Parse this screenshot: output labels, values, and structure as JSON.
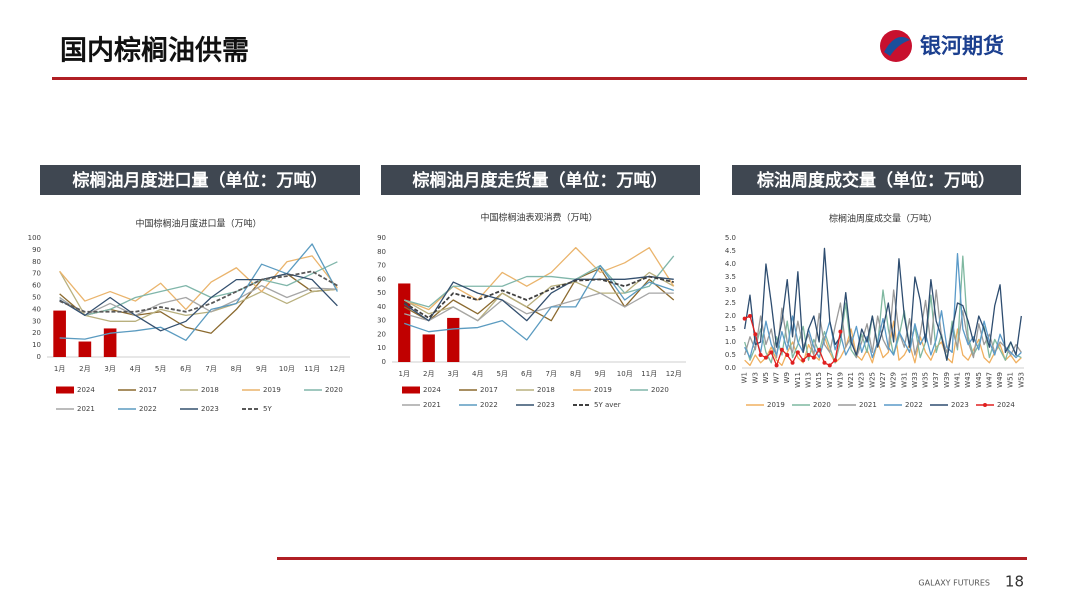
{
  "header": {
    "title": "国内棕榈油供需",
    "logo": "银河期货"
  },
  "footer": {
    "brand": "GALAXY FUTURES",
    "page": "18"
  },
  "chart_data": [
    {
      "type": "combo",
      "heading": "棕榈油月度进口量（单位：万吨）",
      "title": "中国棕榈油月度进口量（万吨）",
      "categories": [
        "1月",
        "2月",
        "3月",
        "4月",
        "5月",
        "6月",
        "7月",
        "8月",
        "9月",
        "10月",
        "11月",
        "12月"
      ],
      "ylim": [
        0,
        100
      ],
      "yticks": [
        0,
        10,
        20,
        30,
        40,
        50,
        60,
        70,
        80,
        90,
        100
      ],
      "grid": false,
      "series": [
        {
          "name": "2024",
          "type": "bar",
          "color": "#c00000",
          "values": [
            39,
            13,
            24,
            null,
            null,
            null,
            null,
            null,
            null,
            null,
            null,
            null
          ]
        },
        {
          "name": "2017",
          "color": "#8b6a2f",
          "values": [
            53,
            35,
            40,
            35,
            38,
            25,
            20,
            40,
            65,
            70,
            55,
            57
          ]
        },
        {
          "name": "2018",
          "color": "#b9b07e",
          "values": [
            72,
            35,
            30,
            30,
            40,
            35,
            38,
            45,
            55,
            45,
            55,
            57
          ]
        },
        {
          "name": "2019",
          "color": "#eab46c",
          "values": [
            72,
            47,
            55,
            47,
            62,
            40,
            63,
            75,
            55,
            80,
            85,
            58
          ]
        },
        {
          "name": "2020",
          "color": "#80b6aa",
          "values": [
            50,
            35,
            40,
            50,
            55,
            60,
            50,
            55,
            65,
            60,
            70,
            80
          ]
        },
        {
          "name": "2021",
          "color": "#a6a6a6",
          "values": [
            50,
            35,
            45,
            35,
            45,
            50,
            38,
            48,
            60,
            50,
            58,
            57
          ]
        },
        {
          "name": "2022",
          "color": "#5b9bc0",
          "values": [
            16,
            15,
            20,
            22,
            25,
            14,
            40,
            45,
            78,
            70,
            95,
            55
          ]
        },
        {
          "name": "2023",
          "color": "#34506f",
          "values": [
            48,
            35,
            50,
            35,
            22,
            30,
            50,
            65,
            65,
            70,
            65,
            43
          ]
        },
        {
          "name": "5Y",
          "color": "#595959",
          "dash": true,
          "values": [
            47,
            38,
            38,
            38,
            42,
            38,
            45,
            55,
            65,
            68,
            72,
            60
          ]
        }
      ]
    },
    {
      "type": "combo",
      "heading": "棕榈油月度走货量（单位：万吨）",
      "title": "中国棕榈油表观消费（万吨）",
      "categories": [
        "1月",
        "2月",
        "3月",
        "4月",
        "5月",
        "6月",
        "7月",
        "8月",
        "9月",
        "10月",
        "11月",
        "12月"
      ],
      "ylim": [
        0,
        90
      ],
      "yticks": [
        0,
        10,
        20,
        30,
        40,
        50,
        60,
        70,
        80,
        90
      ],
      "grid": false,
      "series": [
        {
          "name": "2024",
          "type": "bar",
          "color": "#c00000",
          "values": [
            57,
            20,
            32,
            null,
            null,
            null,
            null,
            null,
            null,
            null,
            null,
            null
          ]
        },
        {
          "name": "2017",
          "color": "#8b6a2f",
          "values": [
            40,
            30,
            45,
            35,
            50,
            40,
            30,
            60,
            68,
            40,
            60,
            45
          ]
        },
        {
          "name": "2018",
          "color": "#b9b07e",
          "values": [
            45,
            35,
            40,
            30,
            50,
            40,
            55,
            58,
            50,
            50,
            65,
            55
          ]
        },
        {
          "name": "2019",
          "color": "#eab46c",
          "values": [
            45,
            38,
            55,
            45,
            65,
            55,
            65,
            83,
            65,
            72,
            83,
            55
          ]
        },
        {
          "name": "2020",
          "color": "#80b6aa",
          "values": [
            45,
            40,
            55,
            55,
            55,
            62,
            62,
            60,
            70,
            50,
            55,
            77
          ]
        },
        {
          "name": "2021",
          "color": "#a6a6a6",
          "values": [
            35,
            30,
            40,
            30,
            45,
            35,
            40,
            45,
            50,
            40,
            50,
            50
          ]
        },
        {
          "name": "2022",
          "color": "#5b9bc0",
          "values": [
            28,
            22,
            24,
            25,
            30,
            16,
            40,
            40,
            70,
            45,
            58,
            52
          ]
        },
        {
          "name": "2023",
          "color": "#34506f",
          "values": [
            42,
            30,
            58,
            50,
            45,
            30,
            50,
            60,
            60,
            60,
            62,
            60
          ]
        },
        {
          "name": "5Y aver",
          "color": "#404040",
          "dash": true,
          "values": [
            43,
            32,
            50,
            45,
            52,
            45,
            53,
            59,
            60,
            55,
            62,
            58
          ]
        }
      ]
    },
    {
      "type": "line",
      "heading": "棕油周度成交量（单位：万吨）",
      "title": "棕榈油周度成交量（万吨）",
      "categories": [
        "W1",
        null,
        "W3",
        null,
        "W5",
        null,
        "W7",
        null,
        "W9",
        null,
        "W11",
        null,
        "W13",
        null,
        "W15",
        null,
        "W17",
        null,
        "W19",
        null,
        "W21",
        null,
        "W23",
        null,
        "W25",
        null,
        "W27",
        null,
        "W29",
        null,
        "W31",
        null,
        "W33",
        null,
        "W35",
        null,
        "W37",
        null,
        "W39",
        null,
        "W41",
        null,
        "W43",
        null,
        "W45",
        null,
        "W47",
        null,
        "W49",
        null,
        "W51",
        null,
        "W53"
      ],
      "ylim": [
        0,
        5
      ],
      "yticks": [
        {
          "value": 0,
          "label": "0.0"
        },
        0.5,
        {
          "value": 1,
          "label": "1.0"
        },
        1.5,
        {
          "value": 2,
          "label": "2.0"
        },
        2.5,
        {
          "value": 3,
          "label": "3.0"
        },
        3.5,
        {
          "value": 4,
          "label": "4.0"
        },
        4.5,
        {
          "value": 5,
          "label": "5.0"
        }
      ],
      "grid": false,
      "series": [
        {
          "name": "2019",
          "color": "#f0b060",
          "values": [
            0.3,
            0.1,
            0.5,
            0.2,
            0.4,
            0.8,
            0.3,
            0.1,
            0.6,
            1.0,
            0.4,
            0.2,
            0.9,
            0.5,
            0.3,
            1.2,
            0.6,
            0.2,
            0.4,
            0.8,
            1.5,
            0.5,
            0.3,
            0.7,
            0.2,
            1.0,
            0.4,
            0.6,
            1.8,
            0.3,
            0.5,
            0.9,
            0.2,
            1.2,
            0.6,
            0.3,
            0.8,
            1.0,
            0.4,
            0.2,
            1.5,
            0.5,
            0.3,
            0.7,
            1.1,
            0.4,
            0.2,
            0.6,
            0.9,
            0.3,
            0.5,
            0.2,
            0.4
          ]
        },
        {
          "name": "2020",
          "color": "#7fb8a0",
          "values": [
            1.0,
            0.3,
            0.8,
            1.5,
            0.6,
            0.2,
            1.2,
            0.5,
            1.8,
            0.4,
            0.9,
            1.6,
            0.3,
            1.1,
            0.6,
            1.4,
            0.8,
            0.2,
            1.0,
            2.5,
            0.7,
            0.4,
            1.3,
            0.6,
            2.0,
            0.9,
            3.0,
            1.5,
            0.5,
            1.2,
            2.2,
            0.8,
            1.6,
            0.4,
            1.0,
            2.8,
            0.6,
            1.3,
            0.3,
            1.8,
            0.7,
            4.3,
            1.2,
            0.5,
            0.9,
            1.6,
            0.4,
            1.1,
            0.7,
            0.3,
            1.0,
            0.5,
            0.4
          ]
        },
        {
          "name": "2021",
          "color": "#9a9a9a",
          "values": [
            0.5,
            1.2,
            0.7,
            2.0,
            0.9,
            1.5,
            0.4,
            2.3,
            1.0,
            0.6,
            1.8,
            0.8,
            1.3,
            0.5,
            2.1,
            0.9,
            0.6,
            1.6,
            2.5,
            0.8,
            1.2,
            0.4,
            1.0,
            1.7,
            0.6,
            2.0,
            1.1,
            0.7,
            3.0,
            1.4,
            0.8,
            1.9,
            0.5,
            1.3,
            2.6,
            0.9,
            3.0,
            1.2,
            0.6,
            1.5,
            0.8,
            2.2,
            1.0,
            0.4,
            1.7,
            0.9,
            1.3,
            0.6,
            1.0,
            0.8,
            0.5,
            0.9,
            0.6
          ]
        },
        {
          "name": "2022",
          "color": "#5a9ac8",
          "values": [
            0.8,
            0.4,
            1.2,
            0.6,
            1.8,
            0.9,
            0.5,
            1.4,
            0.7,
            2.0,
            1.0,
            0.6,
            1.5,
            0.8,
            0.4,
            1.1,
            1.8,
            0.7,
            1.3,
            0.5,
            0.9,
            1.6,
            0.6,
            1.2,
            0.4,
            1.0,
            1.9,
            0.8,
            0.5,
            1.4,
            1.0,
            0.6,
            1.7,
            0.9,
            1.3,
            0.5,
            1.1,
            2.2,
            0.8,
            0.6,
            4.4,
            1.5,
            0.9,
            1.2,
            0.7,
            1.8,
            1.0,
            0.5,
            1.3,
            0.8,
            0.6,
            0.4,
            0.6
          ]
        },
        {
          "name": "2023",
          "color": "#2e4d70",
          "values": [
            1.5,
            2.8,
            0.9,
            1.0,
            4.0,
            2.5,
            0.8,
            1.8,
            3.4,
            1.2,
            3.7,
            0.6,
            1.5,
            2.0,
            1.0,
            4.6,
            1.8,
            0.9,
            1.2,
            2.9,
            1.0,
            0.5,
            1.5,
            1.0,
            2.0,
            0.8,
            1.5,
            2.5,
            1.0,
            4.2,
            2.0,
            0.8,
            3.5,
            2.6,
            1.0,
            3.4,
            1.8,
            1.2,
            0.3,
            1.5,
            2.5,
            2.4,
            1.8,
            1.0,
            2.0,
            1.5,
            0.8,
            2.4,
            3.2,
            0.6,
            1.0,
            0.5,
            2.0
          ]
        },
        {
          "name": "2024",
          "color": "#e02020",
          "marker": true,
          "values": [
            1.9,
            2.0,
            1.3,
            0.5,
            0.4,
            0.6,
            0.1,
            0.7,
            0.5,
            0.2,
            0.6,
            0.3,
            0.5,
            0.4,
            0.7,
            0.2,
            0.1,
            0.3,
            1.4,
            null,
            null,
            null,
            null,
            null,
            null,
            null,
            null,
            null,
            null,
            null,
            null,
            null,
            null,
            null,
            null,
            null,
            null,
            null,
            null,
            null,
            null,
            null,
            null,
            null,
            null,
            null,
            null,
            null,
            null,
            null,
            null,
            null,
            null
          ]
        }
      ]
    }
  ]
}
